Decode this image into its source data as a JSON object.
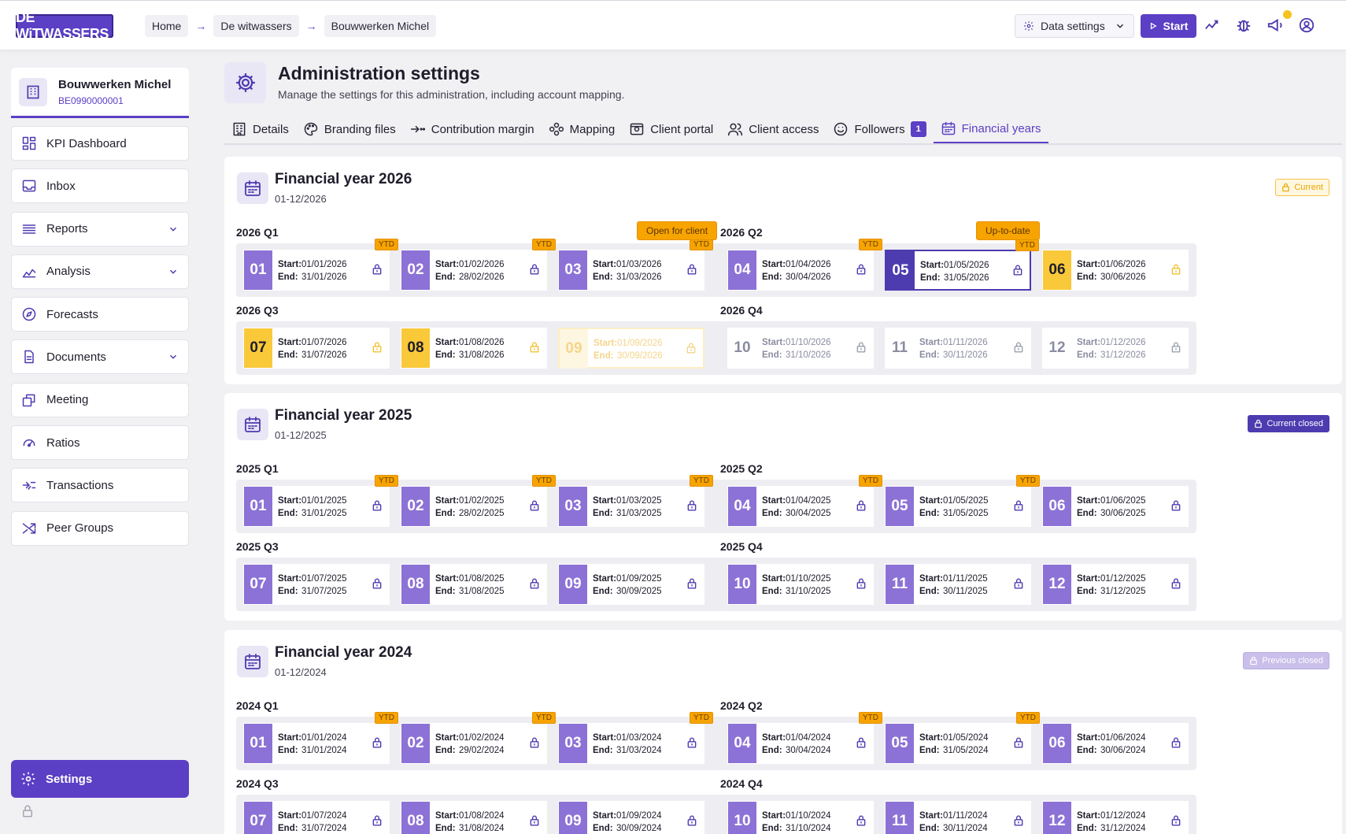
{
  "header": {
    "logo": "DE WiTWASSERS",
    "breadcrumbs": [
      "Home",
      "De witwassers",
      "Bouwwerken Michel"
    ],
    "data_settings_label": "Data settings",
    "start_label": "Start",
    "icons": [
      "activity-icon",
      "bug-icon",
      "megaphone-icon",
      "user-circle-icon"
    ],
    "notification_dot_color": "#f7c21e"
  },
  "client": {
    "name": "Bouwwerken Michel",
    "id": "BE0990000001"
  },
  "sidebar": {
    "items": [
      {
        "label": "KPI Dashboard",
        "icon": "dashboard-icon",
        "expandable": false
      },
      {
        "label": "Inbox",
        "icon": "inbox-icon",
        "expandable": false
      },
      {
        "label": "Reports",
        "icon": "list-icon",
        "expandable": true
      },
      {
        "label": "Analysis",
        "icon": "chart-icon",
        "expandable": true
      },
      {
        "label": "Forecasts",
        "icon": "compass-icon",
        "expandable": false
      },
      {
        "label": "Documents",
        "icon": "document-icon",
        "expandable": true
      },
      {
        "label": "Meeting",
        "icon": "meeting-icon",
        "expandable": false
      },
      {
        "label": "Ratios",
        "icon": "gauge-icon",
        "expandable": false
      },
      {
        "label": "Transactions",
        "icon": "transactions-icon",
        "expandable": false
      },
      {
        "label": "Peer Groups",
        "icon": "shuffle-icon",
        "expandable": false
      }
    ],
    "settings_label": "Settings"
  },
  "page": {
    "title": "Administration settings",
    "subtitle": "Manage the settings for this administration, including account mapping."
  },
  "tabs": [
    {
      "label": "Details",
      "icon": "building-icon"
    },
    {
      "label": "Branding files",
      "icon": "palette-icon"
    },
    {
      "label": "Contribution margin",
      "icon": "arrow-split-icon"
    },
    {
      "label": "Mapping",
      "icon": "mapping-icon"
    },
    {
      "label": "Client portal",
      "icon": "portal-icon"
    },
    {
      "label": "Client access",
      "icon": "users-icon"
    },
    {
      "label": "Followers",
      "icon": "followers-icon",
      "badge": "1"
    },
    {
      "label": "Financial years",
      "icon": "calendar-icon",
      "active": true
    }
  ],
  "colors": {
    "accent": "#5b3fc4",
    "ytd": "#f7a400",
    "month": "#8c72d6",
    "highlight": "#f9c93a"
  },
  "years": [
    {
      "title": "Financial year 2026",
      "sub": "01-12/2026",
      "status": "Current",
      "status_style": "current",
      "quarters": [
        {
          "label": "2026 Q1",
          "months": [
            {
              "n": "01",
              "start": "01/01/2026",
              "end": "31/01/2026",
              "ytd": true,
              "state": "closed"
            },
            {
              "n": "02",
              "start": "01/02/2026",
              "end": "28/02/2026",
              "ytd": true,
              "state": "closed"
            },
            {
              "n": "03",
              "start": "01/03/2026",
              "end": "31/03/2026",
              "ytd": true,
              "state": "closed"
            }
          ]
        },
        {
          "label": "2026 Q2",
          "months": [
            {
              "n": "04",
              "start": "01/04/2026",
              "end": "30/04/2026",
              "ytd": true,
              "state": "closed"
            },
            {
              "n": "05",
              "start": "01/05/2026",
              "end": "31/05/2026",
              "ytd": true,
              "state": "selected"
            },
            {
              "n": "06",
              "start": "01/06/2026",
              "end": "30/06/2026",
              "ytd": false,
              "state": "highlight"
            }
          ]
        },
        {
          "label": "2026 Q3",
          "months": [
            {
              "n": "07",
              "start": "01/07/2026",
              "end": "31/07/2026",
              "ytd": false,
              "state": "highlight"
            },
            {
              "n": "08",
              "start": "01/08/2026",
              "end": "31/08/2026",
              "ytd": false,
              "state": "highlight"
            },
            {
              "n": "09",
              "start": "01/09/2026",
              "end": "30/09/2026",
              "ytd": false,
              "state": "faded"
            }
          ]
        },
        {
          "label": "2026 Q4",
          "months": [
            {
              "n": "10",
              "start": "01/10/2026",
              "end": "31/10/2026",
              "ytd": false,
              "state": "future"
            },
            {
              "n": "11",
              "start": "01/11/2026",
              "end": "30/11/2026",
              "ytd": false,
              "state": "future"
            },
            {
              "n": "12",
              "start": "01/12/2026",
              "end": "31/12/2026",
              "ytd": false,
              "state": "future"
            }
          ]
        }
      ]
    },
    {
      "title": "Financial year 2025",
      "sub": "01-12/2025",
      "status": "Current closed",
      "status_style": "closed",
      "quarters": [
        {
          "label": "2025 Q1",
          "months": [
            {
              "n": "01",
              "start": "01/01/2025",
              "end": "31/01/2025",
              "ytd": true,
              "state": "closed"
            },
            {
              "n": "02",
              "start": "01/02/2025",
              "end": "28/02/2025",
              "ytd": true,
              "state": "closed"
            },
            {
              "n": "03",
              "start": "01/03/2025",
              "end": "31/03/2025",
              "ytd": true,
              "state": "closed"
            }
          ]
        },
        {
          "label": "2025 Q2",
          "months": [
            {
              "n": "04",
              "start": "01/04/2025",
              "end": "30/04/2025",
              "ytd": true,
              "state": "closed"
            },
            {
              "n": "05",
              "start": "01/05/2025",
              "end": "31/05/2025",
              "ytd": true,
              "state": "closed"
            },
            {
              "n": "06",
              "start": "01/06/2025",
              "end": "30/06/2025",
              "ytd": false,
              "state": "closed"
            }
          ]
        },
        {
          "label": "2025 Q3",
          "months": [
            {
              "n": "07",
              "start": "01/07/2025",
              "end": "31/07/2025",
              "ytd": false,
              "state": "closed"
            },
            {
              "n": "08",
              "start": "01/08/2025",
              "end": "31/08/2025",
              "ytd": false,
              "state": "closed"
            },
            {
              "n": "09",
              "start": "01/09/2025",
              "end": "30/09/2025",
              "ytd": false,
              "state": "closed"
            }
          ]
        },
        {
          "label": "2025 Q4",
          "months": [
            {
              "n": "10",
              "start": "01/10/2025",
              "end": "31/10/2025",
              "ytd": false,
              "state": "closed"
            },
            {
              "n": "11",
              "start": "01/11/2025",
              "end": "30/11/2025",
              "ytd": false,
              "state": "closed"
            },
            {
              "n": "12",
              "start": "01/12/2025",
              "end": "31/12/2025",
              "ytd": false,
              "state": "closed"
            }
          ]
        }
      ]
    },
    {
      "title": "Financial year 2024",
      "sub": "01-12/2024",
      "status": "Previous closed",
      "status_style": "previous",
      "quarters": [
        {
          "label": "2024 Q1",
          "months": [
            {
              "n": "01",
              "start": "01/01/2024",
              "end": "31/01/2024",
              "ytd": true,
              "state": "closed"
            },
            {
              "n": "02",
              "start": "01/02/2024",
              "end": "29/02/2024",
              "ytd": true,
              "state": "closed"
            },
            {
              "n": "03",
              "start": "01/03/2024",
              "end": "31/03/2024",
              "ytd": true,
              "state": "closed"
            }
          ]
        },
        {
          "label": "2024 Q2",
          "months": [
            {
              "n": "04",
              "start": "01/04/2024",
              "end": "30/04/2024",
              "ytd": true,
              "state": "closed"
            },
            {
              "n": "05",
              "start": "01/05/2024",
              "end": "31/05/2024",
              "ytd": true,
              "state": "closed"
            },
            {
              "n": "06",
              "start": "01/06/2024",
              "end": "30/06/2024",
              "ytd": false,
              "state": "closed"
            }
          ]
        },
        {
          "label": "2024 Q3",
          "months": [
            {
              "n": "07",
              "start": "01/07/2024",
              "end": "31/07/2024",
              "ytd": false,
              "state": "closed"
            },
            {
              "n": "08",
              "start": "01/08/2024",
              "end": "31/08/2024",
              "ytd": false,
              "state": "closed"
            },
            {
              "n": "09",
              "start": "01/09/2024",
              "end": "30/09/2024",
              "ytd": false,
              "state": "closed"
            }
          ]
        },
        {
          "label": "2024 Q4",
          "months": [
            {
              "n": "10",
              "start": "01/10/2024",
              "end": "31/10/2024",
              "ytd": false,
              "state": "closed"
            },
            {
              "n": "11",
              "start": "01/11/2024",
              "end": "30/11/2024",
              "ytd": false,
              "state": "closed"
            },
            {
              "n": "12",
              "start": "01/12/2024",
              "end": "31/12/2024",
              "ytd": false,
              "state": "closed"
            }
          ]
        }
      ]
    }
  ],
  "labels": {
    "start": "Start:",
    "end": "End:",
    "ytd": "YTD"
  },
  "tooltips": {
    "open_for_client": "Open for client",
    "up_to_date": "Up-to-date"
  }
}
